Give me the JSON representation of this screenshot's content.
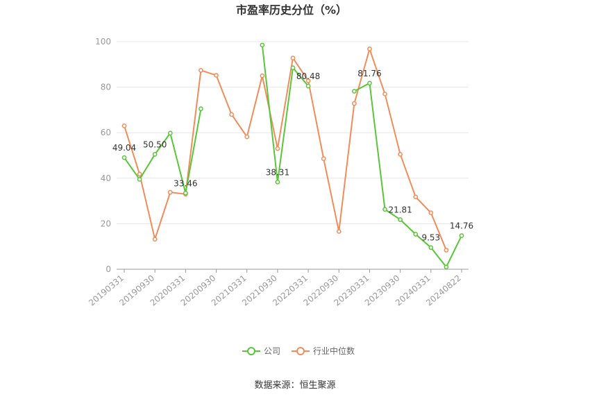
{
  "chart_data": {
    "type": "line",
    "title": "市盈率历史分位（%）",
    "source": "数据来源：恒生聚源",
    "ylim": [
      0,
      100
    ],
    "yticks": [
      0,
      20,
      40,
      60,
      80,
      100
    ],
    "x": [
      "20190331",
      "20190630",
      "20190930",
      "20191231",
      "20200331",
      "20200630",
      "20200930",
      "20201231",
      "20210331",
      "20210630",
      "20210930",
      "20211231",
      "20220331",
      "20220630",
      "20220930",
      "20221231",
      "20230331",
      "20230630",
      "20230930",
      "20231231",
      "20240331",
      "20240630",
      "20240822"
    ],
    "xticks": [
      "20190331",
      "20190930",
      "20200331",
      "20200930",
      "20210331",
      "20210930",
      "20220331",
      "20220930",
      "20230331",
      "20230930",
      "20240331",
      "20240822"
    ],
    "legend_position": "bottom",
    "grid": true,
    "series": [
      {
        "name": "公司",
        "color": "#5ac43a",
        "values": [
          49.04,
          39.5,
          50.5,
          59.8,
          33.46,
          70.5,
          null,
          null,
          null,
          98.5,
          38.31,
          88.5,
          80.48,
          null,
          null,
          78.2,
          81.76,
          26.3,
          21.81,
          15.4,
          9.53,
          1.0,
          14.76
        ],
        "labels": {
          "0": "49.04",
          "2": "50.50",
          "4": "33.46",
          "10": "38.31",
          "12": "80.48",
          "16": "81.76",
          "18": "21.81",
          "20": "9.53",
          "22": "14.76"
        }
      },
      {
        "name": "行业中位数",
        "color": "#f08c5a",
        "values": [
          63.0,
          41.8,
          13.2,
          33.8,
          33.0,
          87.4,
          85.2,
          68.0,
          58.2,
          85.0,
          53.0,
          92.8,
          82.8,
          48.6,
          16.6,
          72.8,
          96.8,
          77.0,
          50.5,
          31.8,
          24.8,
          8.4,
          null
        ]
      }
    ]
  }
}
